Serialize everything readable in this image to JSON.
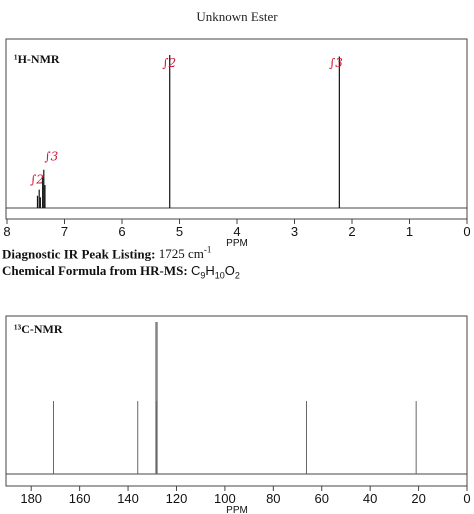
{
  "title": "Unknown Ester",
  "ir": {
    "label": "Diagnostic IR Peak Listing:",
    "value": "1725 cm",
    "sup": "-1"
  },
  "formula": {
    "label": "Chemical Formula from HR-MS:",
    "parts": [
      {
        "t": "C",
        "sub": "9"
      },
      {
        "t": "H",
        "sub": "10"
      },
      {
        "t": "O",
        "sub": "2"
      }
    ]
  },
  "chart_data": [
    {
      "type": "bar",
      "title": "¹H-NMR",
      "xlabel": "PPM",
      "xlim": [
        8,
        0
      ],
      "ylim": [
        0,
        1
      ],
      "xticks": [
        8,
        7,
        6,
        5,
        4,
        3,
        2,
        1,
        0
      ],
      "peaks": [
        {
          "x": 7.47,
          "y": 0.08
        },
        {
          "x": 7.44,
          "y": 0.12
        },
        {
          "x": 7.42,
          "y": 0.07
        },
        {
          "x": 7.38,
          "y": 0.2
        },
        {
          "x": 7.36,
          "y": 0.25
        },
        {
          "x": 7.34,
          "y": 0.15
        },
        {
          "x": 5.17,
          "y": 1.0
        },
        {
          "x": 2.22,
          "y": 0.99
        }
      ],
      "annotations": [
        {
          "text": "∫2",
          "x": 7.6,
          "y": 0.16
        },
        {
          "text": "∫3",
          "x": 7.35,
          "y": 0.31
        },
        {
          "text": "∫2",
          "x": 5.3,
          "y": 0.92
        },
        {
          "text": "∫3",
          "x": 2.4,
          "y": 0.92
        }
      ]
    },
    {
      "type": "bar",
      "title": "¹³C-NMR",
      "xlabel": "PPM",
      "xlim": [
        190,
        0
      ],
      "ylim": [
        0,
        1
      ],
      "xticks": [
        180,
        160,
        140,
        120,
        100,
        80,
        60,
        40,
        20,
        0
      ],
      "peaks": [
        {
          "x": 170.8,
          "y": 0.48
        },
        {
          "x": 136.0,
          "y": 0.48
        },
        {
          "x": 128.5,
          "y": 1.0
        },
        {
          "x": 128.2,
          "y": 0.48
        },
        {
          "x": 128.0,
          "y": 1.0
        },
        {
          "x": 66.3,
          "y": 0.48
        },
        {
          "x": 21.0,
          "y": 0.48
        }
      ]
    }
  ]
}
